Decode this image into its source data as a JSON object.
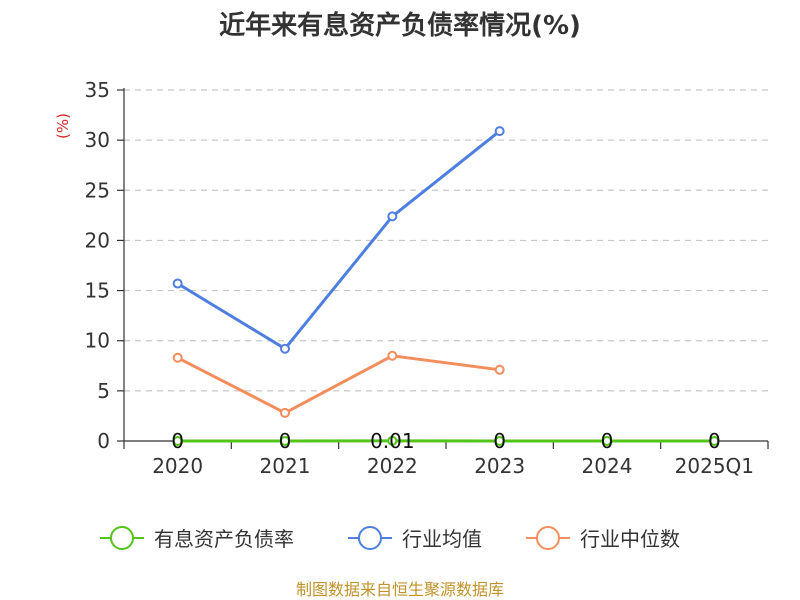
{
  "chart_data": {
    "type": "line",
    "title": "近年来有息资产负债率情况(%)",
    "ylabel": "(%)",
    "xlabel": "",
    "categories": [
      "2020",
      "2021",
      "2022",
      "2023",
      "2024",
      "2025Q1"
    ],
    "ylim": [
      0,
      35
    ],
    "yticks": [
      0,
      5,
      10,
      15,
      20,
      25,
      30,
      35
    ],
    "grid": true,
    "legend": "bottom",
    "series": [
      {
        "name": "有息资产负债率",
        "color": "#52c41a",
        "values": [
          0,
          0,
          0.01,
          0,
          0,
          0
        ],
        "labels": [
          "0",
          "0",
          "0.01",
          "0",
          "0",
          "0"
        ]
      },
      {
        "name": "行业均值",
        "color": "#4e7fe0",
        "values": [
          15.7,
          9.2,
          22.4,
          30.9,
          null,
          null
        ]
      },
      {
        "name": "行业中位数",
        "color": "#f48d5c",
        "values": [
          8.3,
          2.8,
          8.5,
          7.1,
          null,
          null
        ]
      }
    ]
  },
  "source": "制图数据来自恒生聚源数据库"
}
